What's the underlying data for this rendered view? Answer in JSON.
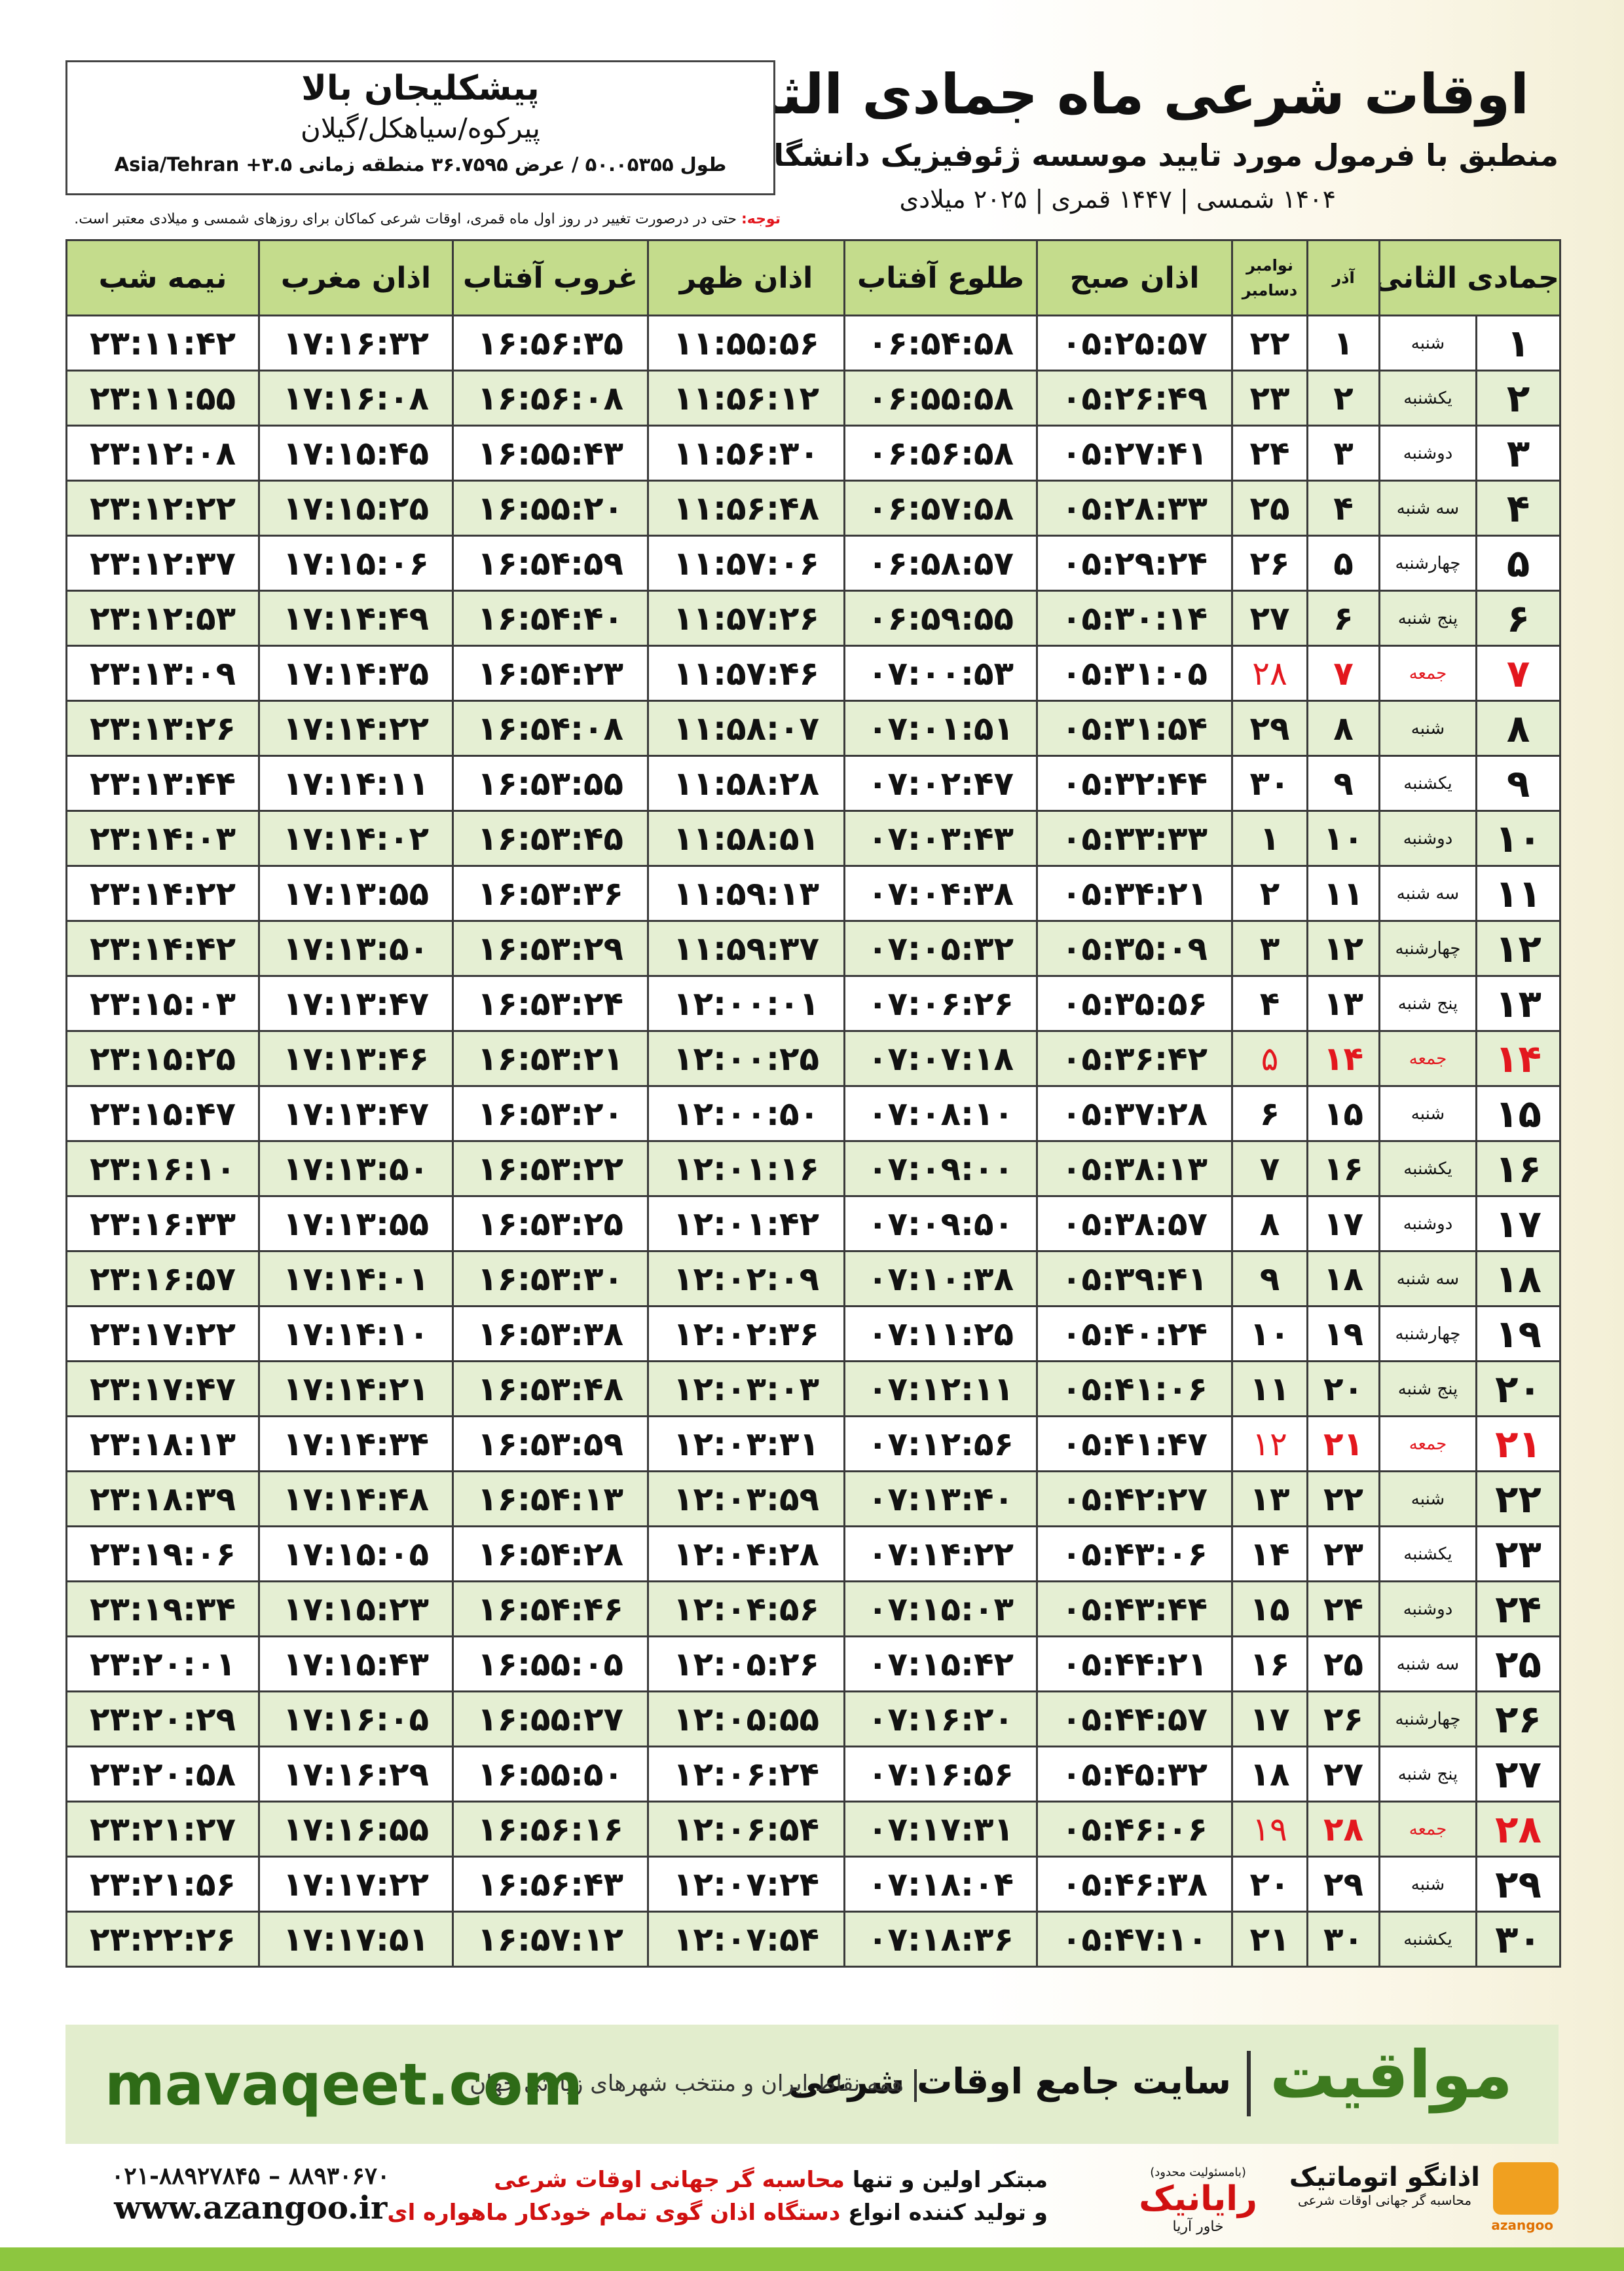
{
  "header": {
    "title": "اوقات شرعی ماه جمادی الثانی",
    "subtitle": "منطبق با فرمول مورد تایید موسسه ژئوفیزیک دانشگاه تهران",
    "dates": "۱۴۰۴ شمسی | ۱۴۴۷ قمری | ۲۰۲۵ میلادی"
  },
  "location": {
    "name": "پیشکلیجان بالا",
    "region": "پیرکوه/سیاهکل/گیلان",
    "coords": "طول ۵۰.۰۵۳۵۵ / عرض ۳۶.۷۵۹۵ منطقه زمانی ۳.۵+ Asia/Tehran"
  },
  "note": {
    "label": "توجه:",
    "text": "حتی در درصورت تغییر در روز اول ماه قمری، اوقات شرعی کماکان برای روزهای شمسی و میلادی معتبر است."
  },
  "table": {
    "headers": [
      [
        "جمادی الثانی"
      ],
      [
        "آذر"
      ],
      [
        "نوامبر",
        "دسامبر"
      ],
      [
        "اذان صبح"
      ],
      [
        "طلوع آفتاب"
      ],
      [
        "اذان ظهر"
      ],
      [
        "غروب آفتاب"
      ],
      [
        "اذان مغرب"
      ],
      [
        "نیمه شب"
      ]
    ],
    "rows": [
      {
        "cells": [
          "۱",
          "شنبه",
          "۱",
          "۲۲",
          "۰۵:۲۵:۵۷",
          "۰۶:۵۴:۵۸",
          "۱۱:۵۵:۵۶",
          "۱۶:۵۶:۳۵",
          "۱۷:۱۶:۳۲",
          "۲۳:۱۱:۴۲"
        ]
      },
      {
        "cells": [
          "۲",
          "یکشنبه",
          "۲",
          "۲۳",
          "۰۵:۲۶:۴۹",
          "۰۶:۵۵:۵۸",
          "۱۱:۵۶:۱۲",
          "۱۶:۵۶:۰۸",
          "۱۷:۱۶:۰۸",
          "۲۳:۱۱:۵۵"
        ]
      },
      {
        "cells": [
          "۳",
          "دوشنبه",
          "۳",
          "۲۴",
          "۰۵:۲۷:۴۱",
          "۰۶:۵۶:۵۸",
          "۱۱:۵۶:۳۰",
          "۱۶:۵۵:۴۳",
          "۱۷:۱۵:۴۵",
          "۲۳:۱۲:۰۸"
        ]
      },
      {
        "cells": [
          "۴",
          "سه شنبه",
          "۴",
          "۲۵",
          "۰۵:۲۸:۳۳",
          "۰۶:۵۷:۵۸",
          "۱۱:۵۶:۴۸",
          "۱۶:۵۵:۲۰",
          "۱۷:۱۵:۲۵",
          "۲۳:۱۲:۲۲"
        ]
      },
      {
        "cells": [
          "۵",
          "چهارشنبه",
          "۵",
          "۲۶",
          "۰۵:۲۹:۲۴",
          "۰۶:۵۸:۵۷",
          "۱۱:۵۷:۰۶",
          "۱۶:۵۴:۵۹",
          "۱۷:۱۵:۰۶",
          "۲۳:۱۲:۳۷"
        ]
      },
      {
        "cells": [
          "۶",
          "پنج شنبه",
          "۶",
          "۲۷",
          "۰۵:۳۰:۱۴",
          "۰۶:۵۹:۵۵",
          "۱۱:۵۷:۲۶",
          "۱۶:۵۴:۴۰",
          "۱۷:۱۴:۴۹",
          "۲۳:۱۲:۵۳"
        ]
      },
      {
        "cells": [
          "۷",
          "جمعه",
          "۷",
          "۲۸",
          "۰۵:۳۱:۰۵",
          "۰۷:۰۰:۵۳",
          "۱۱:۵۷:۴۶",
          "۱۶:۵۴:۲۳",
          "۱۷:۱۴:۳۵",
          "۲۳:۱۳:۰۹"
        ],
        "color": "#e3171e"
      },
      {
        "cells": [
          "۸",
          "شنبه",
          "۸",
          "۲۹",
          "۰۵:۳۱:۵۴",
          "۰۷:۰۱:۵۱",
          "۱۱:۵۸:۰۷",
          "۱۶:۵۴:۰۸",
          "۱۷:۱۴:۲۲",
          "۲۳:۱۳:۲۶"
        ]
      },
      {
        "cells": [
          "۹",
          "یکشنبه",
          "۹",
          "۳۰",
          "۰۵:۳۲:۴۴",
          "۰۷:۰۲:۴۷",
          "۱۱:۵۸:۲۸",
          "۱۶:۵۳:۵۵",
          "۱۷:۱۴:۱۱",
          "۲۳:۱۳:۴۴"
        ]
      },
      {
        "cells": [
          "۱۰",
          "دوشنبه",
          "۱۰",
          "۱",
          "۰۵:۳۳:۳۳",
          "۰۷:۰۳:۴۳",
          "۱۱:۵۸:۵۱",
          "۱۶:۵۳:۴۵",
          "۱۷:۱۴:۰۲",
          "۲۳:۱۴:۰۳"
        ]
      },
      {
        "cells": [
          "۱۱",
          "سه شنبه",
          "۱۱",
          "۲",
          "۰۵:۳۴:۲۱",
          "۰۷:۰۴:۳۸",
          "۱۱:۵۹:۱۳",
          "۱۶:۵۳:۳۶",
          "۱۷:۱۳:۵۵",
          "۲۳:۱۴:۲۲"
        ]
      },
      {
        "cells": [
          "۱۲",
          "چهارشنبه",
          "۱۲",
          "۳",
          "۰۵:۳۵:۰۹",
          "۰۷:۰۵:۳۲",
          "۱۱:۵۹:۳۷",
          "۱۶:۵۳:۲۹",
          "۱۷:۱۳:۵۰",
          "۲۳:۱۴:۴۲"
        ]
      },
      {
        "cells": [
          "۱۳",
          "پنج شنبه",
          "۱۳",
          "۴",
          "۰۵:۳۵:۵۶",
          "۰۷:۰۶:۲۶",
          "۱۲:۰۰:۰۱",
          "۱۶:۵۳:۲۴",
          "۱۷:۱۳:۴۷",
          "۲۳:۱۵:۰۳"
        ]
      },
      {
        "cells": [
          "۱۴",
          "جمعه",
          "۱۴",
          "۵",
          "۰۵:۳۶:۴۲",
          "۰۷:۰۷:۱۸",
          "۱۲:۰۰:۲۵",
          "۱۶:۵۳:۲۱",
          "۱۷:۱۳:۴۶",
          "۲۳:۱۵:۲۵"
        ],
        "color": "#e3171e"
      },
      {
        "cells": [
          "۱۵",
          "شنبه",
          "۱۵",
          "۶",
          "۰۵:۳۷:۲۸",
          "۰۷:۰۸:۱۰",
          "۱۲:۰۰:۵۰",
          "۱۶:۵۳:۲۰",
          "۱۷:۱۳:۴۷",
          "۲۳:۱۵:۴۷"
        ]
      },
      {
        "cells": [
          "۱۶",
          "یکشنبه",
          "۱۶",
          "۷",
          "۰۵:۳۸:۱۳",
          "۰۷:۰۹:۰۰",
          "۱۲:۰۱:۱۶",
          "۱۶:۵۳:۲۲",
          "۱۷:۱۳:۵۰",
          "۲۳:۱۶:۱۰"
        ]
      },
      {
        "cells": [
          "۱۷",
          "دوشنبه",
          "۱۷",
          "۸",
          "۰۵:۳۸:۵۷",
          "۰۷:۰۹:۵۰",
          "۱۲:۰۱:۴۲",
          "۱۶:۵۳:۲۵",
          "۱۷:۱۳:۵۵",
          "۲۳:۱۶:۳۳"
        ]
      },
      {
        "cells": [
          "۱۸",
          "سه شنبه",
          "۱۸",
          "۹",
          "۰۵:۳۹:۴۱",
          "۰۷:۱۰:۳۸",
          "۱۲:۰۲:۰۹",
          "۱۶:۵۳:۳۰",
          "۱۷:۱۴:۰۱",
          "۲۳:۱۶:۵۷"
        ]
      },
      {
        "cells": [
          "۱۹",
          "چهارشنبه",
          "۱۹",
          "۱۰",
          "۰۵:۴۰:۲۴",
          "۰۷:۱۱:۲۵",
          "۱۲:۰۲:۳۶",
          "۱۶:۵۳:۳۸",
          "۱۷:۱۴:۱۰",
          "۲۳:۱۷:۲۲"
        ]
      },
      {
        "cells": [
          "۲۰",
          "پنج شنبه",
          "۲۰",
          "۱۱",
          "۰۵:۴۱:۰۶",
          "۰۷:۱۲:۱۱",
          "۱۲:۰۳:۰۳",
          "۱۶:۵۳:۴۸",
          "۱۷:۱۴:۲۱",
          "۲۳:۱۷:۴۷"
        ]
      },
      {
        "cells": [
          "۲۱",
          "جمعه",
          "۲۱",
          "۱۲",
          "۰۵:۴۱:۴۷",
          "۰۷:۱۲:۵۶",
          "۱۲:۰۳:۳۱",
          "۱۶:۵۳:۵۹",
          "۱۷:۱۴:۳۴",
          "۲۳:۱۸:۱۳"
        ],
        "color": "#e3171e"
      },
      {
        "cells": [
          "۲۲",
          "شنبه",
          "۲۲",
          "۱۳",
          "۰۵:۴۲:۲۷",
          "۰۷:۱۳:۴۰",
          "۱۲:۰۳:۵۹",
          "۱۶:۵۴:۱۳",
          "۱۷:۱۴:۴۸",
          "۲۳:۱۸:۳۹"
        ]
      },
      {
        "cells": [
          "۲۳",
          "یکشنبه",
          "۲۳",
          "۱۴",
          "۰۵:۴۳:۰۶",
          "۰۷:۱۴:۲۲",
          "۱۲:۰۴:۲۸",
          "۱۶:۵۴:۲۸",
          "۱۷:۱۵:۰۵",
          "۲۳:۱۹:۰۶"
        ]
      },
      {
        "cells": [
          "۲۴",
          "دوشنبه",
          "۲۴",
          "۱۵",
          "۰۵:۴۳:۴۴",
          "۰۷:۱۵:۰۳",
          "۱۲:۰۴:۵۶",
          "۱۶:۵۴:۴۶",
          "۱۷:۱۵:۲۳",
          "۲۳:۱۹:۳۴"
        ]
      },
      {
        "cells": [
          "۲۵",
          "سه شنبه",
          "۲۵",
          "۱۶",
          "۰۵:۴۴:۲۱",
          "۰۷:۱۵:۴۲",
          "۱۲:۰۵:۲۶",
          "۱۶:۵۵:۰۵",
          "۱۷:۱۵:۴۳",
          "۲۳:۲۰:۰۱"
        ]
      },
      {
        "cells": [
          "۲۶",
          "چهارشنبه",
          "۲۶",
          "۱۷",
          "۰۵:۴۴:۵۷",
          "۰۷:۱۶:۲۰",
          "۱۲:۰۵:۵۵",
          "۱۶:۵۵:۲۷",
          "۱۷:۱۶:۰۵",
          "۲۳:۲۰:۲۹"
        ]
      },
      {
        "cells": [
          "۲۷",
          "پنج شنبه",
          "۲۷",
          "۱۸",
          "۰۵:۴۵:۳۲",
          "۰۷:۱۶:۵۶",
          "۱۲:۰۶:۲۴",
          "۱۶:۵۵:۵۰",
          "۱۷:۱۶:۲۹",
          "۲۳:۲۰:۵۸"
        ]
      },
      {
        "cells": [
          "۲۸",
          "جمعه",
          "۲۸",
          "۱۹",
          "۰۵:۴۶:۰۶",
          "۰۷:۱۷:۳۱",
          "۱۲:۰۶:۵۴",
          "۱۶:۵۶:۱۶",
          "۱۷:۱۶:۵۵",
          "۲۳:۲۱:۲۷"
        ],
        "color": "#e3171e"
      },
      {
        "cells": [
          "۲۹",
          "شنبه",
          "۲۹",
          "۲۰",
          "۰۵:۴۶:۳۸",
          "۰۷:۱۸:۰۴",
          "۱۲:۰۷:۲۴",
          "۱۶:۵۶:۴۳",
          "۱۷:۱۷:۲۲",
          "۲۳:۲۱:۵۶"
        ]
      },
      {
        "cells": [
          "۳۰",
          "یکشنبه",
          "۳۰",
          "۲۱",
          "۰۵:۴۷:۱۰",
          "۰۷:۱۸:۳۶",
          "۱۲:۰۷:۵۴",
          "۱۶:۵۷:۱۲",
          "۱۷:۱۷:۵۱",
          "۲۳:۲۲:۲۶"
        ]
      }
    ]
  },
  "banner": {
    "brand": "مواقیت",
    "tagline": "سایت جامع اوقات شرعی",
    "scope": "همه نقاط ایران و منتخب شهرهای زیارتی جهان",
    "url": "mavaqeet.com"
  },
  "footer": {
    "line1": [
      "مبتکر اولین و تنها",
      "محاسبه گر جهانی اوقات شرعی"
    ],
    "line2": [
      "و تولید کننده انواع",
      "دستگاه اذان گوی تمام خودکار ماهواره ای"
    ],
    "phone": "۰۲۱-۸۸۹۲۷۸۴۵ – ۸۸۹۳۰۶۷۰",
    "website": "www.azangoo.ir",
    "logo1": {
      "name": "رایانیک",
      "sub": "خاور آریا",
      "note": "(بامسئولیت محدود)"
    },
    "logo2": {
      "name": "اذانگو اتوماتیک",
      "sub": "محاسبه گر جهانی اوقات شرعی",
      "latin": "azangoo"
    }
  }
}
